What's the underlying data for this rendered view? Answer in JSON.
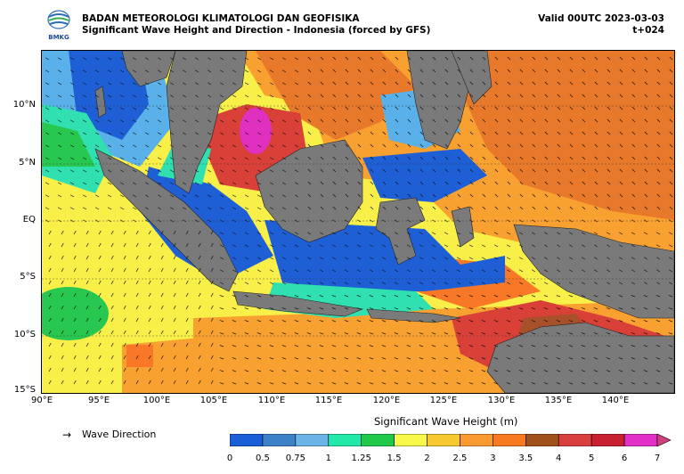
{
  "header": {
    "org": "BADAN METEOROLOGI KLIMATOLOGI DAN GEOFISIKA",
    "subtitle": "Significant Wave Height and Direction - Indonesia (forced by GFS)",
    "valid": "Valid 00UTC 2023-03-03",
    "lead": "t+024",
    "logo_text": "BMKG"
  },
  "axes": {
    "y_ticks": [
      "10°N",
      "5°N",
      "EQ",
      "5°S",
      "10°S",
      "15°S"
    ],
    "x_ticks": [
      "90°E",
      "95°E",
      "100°E",
      "105°E",
      "110°E",
      "115°E",
      "120°E",
      "125°E",
      "130°E",
      "135°E",
      "140°E"
    ]
  },
  "legend": {
    "arrow_glyph": "→",
    "label": "Wave Direction"
  },
  "colorbar": {
    "title": "Significant Wave Height (m)",
    "ticks": [
      "0",
      "0.5",
      "0.75",
      "1",
      "1.25",
      "1.5",
      "2",
      "2.5",
      "3",
      "3.5",
      "4",
      "5",
      "6",
      "7"
    ],
    "colors": [
      "#1a5ed8",
      "#3d82c8",
      "#6ab4e8",
      "#22e8a8",
      "#20c84a",
      "#f8f84a",
      "#f8c830",
      "#f89a30",
      "#f87a20",
      "#a0501a",
      "#d84040",
      "#c82030",
      "#e030c8",
      "#d04080"
    ]
  },
  "map_colors": {
    "land": "#7a7a7a",
    "yellow": "#f8f048",
    "orange": "#f8a030",
    "dark_orange": "#f07828",
    "red": "#d84038",
    "brown": "#a8502a",
    "blue": "#1f5fd6",
    "light_blue": "#5ab0e8",
    "cyan": "#30e0b0",
    "green": "#28c850",
    "magenta": "#e030c0"
  }
}
